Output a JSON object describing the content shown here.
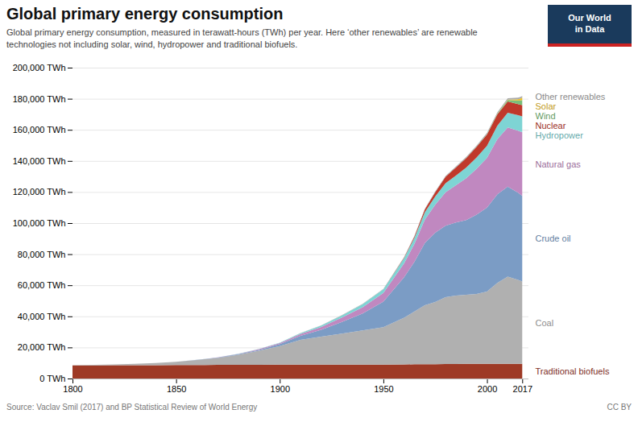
{
  "chart_data": {
    "type": "area",
    "stacked": true,
    "title": "Global primary energy consumption",
    "subtitle": "Global primary energy consumption, measured in terawatt-hours (TWh) per year. Here ‘other renewables’ are renewable\ntechnologies not including solar, wind, hydropower and traditional biofuels.",
    "source": "Source: Vaclav Smil (2017) and BP Statistical Review of World Energy",
    "annotations": [
      "CC BY",
      "Our World",
      "in Data"
    ],
    "x": [
      1800,
      1810,
      1820,
      1830,
      1840,
      1850,
      1860,
      1870,
      1880,
      1890,
      1900,
      1910,
      1920,
      1930,
      1940,
      1950,
      1960,
      1965,
      1970,
      1975,
      1980,
      1985,
      1990,
      1995,
      2000,
      2005,
      2010,
      2015,
      2016,
      2017
    ],
    "series": [
      {
        "name": "Traditional biofuels",
        "color": "#9e3a26",
        "values": [
          8400,
          8450,
          8500,
          8550,
          8600,
          8650,
          8700,
          8750,
          8800,
          8850,
          8900,
          8900,
          8900,
          8900,
          8900,
          9000,
          9100,
          9150,
          9200,
          9250,
          9300,
          9350,
          9400,
          9450,
          9500,
          9500,
          9500,
          9500,
          9500,
          9500
        ]
      },
      {
        "name": "Coal",
        "color": "#b0b0b0",
        "values": [
          200,
          350,
          600,
          900,
          1400,
          2100,
          3200,
          4500,
          6500,
          9000,
          12000,
          16000,
          18000,
          20000,
          22000,
          24000,
          30000,
          34000,
          38000,
          40000,
          43000,
          44000,
          44500,
          45000,
          46500,
          52000,
          56000,
          54000,
          53500,
          53000
        ]
      },
      {
        "name": "Crude oil",
        "color": "#7b9cc5",
        "values": [
          0,
          0,
          0,
          0,
          0,
          50,
          100,
          200,
          350,
          600,
          1200,
          2500,
          4500,
          7500,
          11000,
          16500,
          26000,
          32000,
          40000,
          44500,
          46000,
          47000,
          48000,
          51000,
          54000,
          57000,
          58000,
          56000,
          55500,
          55000
        ]
      },
      {
        "name": "Natural gas",
        "color": "#c088c0",
        "values": [
          0,
          0,
          0,
          0,
          0,
          0,
          50,
          100,
          200,
          400,
          700,
          1200,
          1800,
          2800,
          4000,
          5500,
          9000,
          11500,
          15000,
          18000,
          21500,
          24000,
          27000,
          29500,
          32000,
          35500,
          38000,
          40000,
          40500,
          41000
        ]
      },
      {
        "name": "Hydropower",
        "color": "#7ed4d4",
        "values": [
          0,
          0,
          0,
          0,
          0,
          0,
          0,
          30,
          80,
          150,
          300,
          600,
          900,
          1400,
          1900,
          2400,
          3300,
          3900,
          4800,
          5300,
          5800,
          6200,
          6800,
          7300,
          7800,
          8700,
          9500,
          9900,
          10000,
          10200
        ]
      },
      {
        "name": "Nuclear",
        "color": "#c0392b",
        "values": [
          0,
          0,
          0,
          0,
          0,
          0,
          0,
          0,
          0,
          0,
          0,
          0,
          0,
          0,
          0,
          0,
          400,
          900,
          1800,
          2800,
          4200,
          5200,
          6200,
          6800,
          7200,
          7200,
          7200,
          7200,
          7200,
          7200
        ]
      },
      {
        "name": "Wind",
        "color": "#7abf7a",
        "values": [
          0,
          0,
          0,
          0,
          0,
          0,
          0,
          0,
          0,
          0,
          0,
          0,
          0,
          0,
          0,
          0,
          0,
          0,
          0,
          0,
          10,
          40,
          80,
          130,
          230,
          480,
          950,
          2300,
          2700,
          3200
        ]
      },
      {
        "name": "Solar",
        "color": "#f0c020",
        "values": [
          0,
          0,
          0,
          0,
          0,
          0,
          0,
          0,
          0,
          0,
          0,
          0,
          0,
          0,
          0,
          0,
          0,
          0,
          0,
          0,
          0,
          5,
          15,
          25,
          40,
          80,
          200,
          800,
          1100,
          1600
        ]
      },
      {
        "name": "Other renewables",
        "color": "#aaaaaa",
        "values": [
          0,
          0,
          0,
          0,
          0,
          0,
          0,
          0,
          0,
          0,
          0,
          50,
          100,
          150,
          200,
          250,
          300,
          350,
          400,
          450,
          500,
          550,
          600,
          650,
          700,
          800,
          900,
          1000,
          1050,
          1100
        ]
      }
    ],
    "xlim": [
      1800,
      2020
    ],
    "xticks": [
      1800,
      1850,
      1900,
      1950,
      2000,
      2017
    ],
    "ylim": [
      0,
      200000
    ],
    "yticks": [
      {
        "value": 0,
        "label": "0 TWh"
      },
      {
        "value": 20000,
        "label": "20,000 TWh"
      },
      {
        "value": 40000,
        "label": "40,000 TWh"
      },
      {
        "value": 60000,
        "label": "60,000 TWh"
      },
      {
        "value": 80000,
        "label": "80,000 TWh"
      },
      {
        "value": 100000,
        "label": "100,000 TWh"
      },
      {
        "value": 120000,
        "label": "120,000 TWh"
      },
      {
        "value": 140000,
        "label": "140,000 TWh"
      },
      {
        "value": 160000,
        "label": "160,000 TWh"
      },
      {
        "value": 180000,
        "label": "180,000 TWh"
      },
      {
        "value": 200000,
        "label": "200,000 TWh"
      }
    ],
    "grid": true,
    "legend": "right"
  }
}
